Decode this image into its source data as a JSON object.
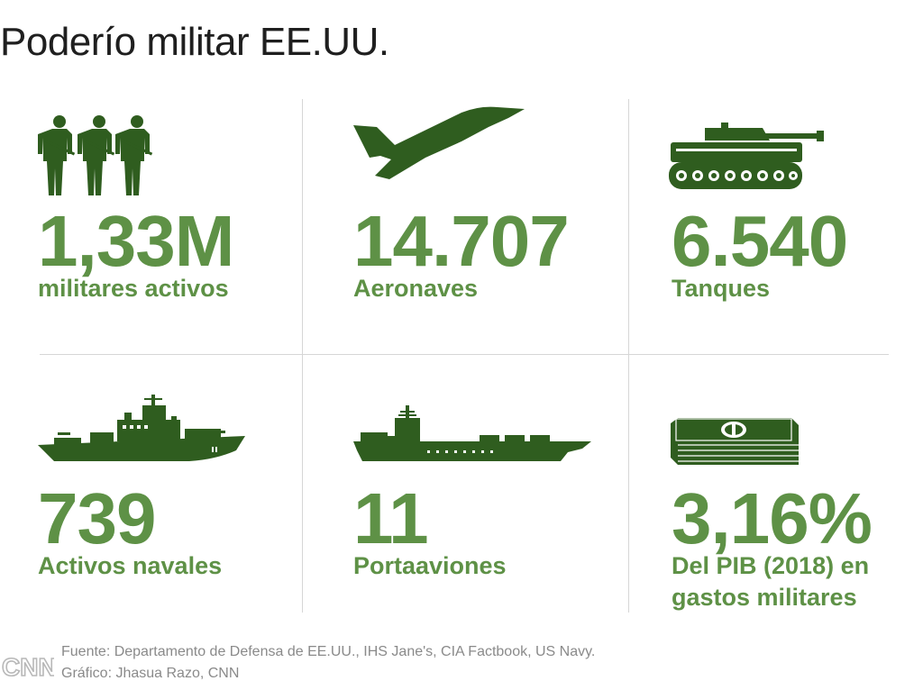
{
  "title": "Poderío militar EE.UU.",
  "colors": {
    "number": "#5e9146",
    "icon": "#2f5d1f",
    "divider": "#d6d6d6",
    "footer": "#8a8a8a"
  },
  "stats": [
    {
      "icon": "soldiers-icon",
      "value": "1,33M",
      "label_lines": [
        "militares activos"
      ]
    },
    {
      "icon": "fighter-jet-icon",
      "value": "14.707",
      "label_lines": [
        "Aeronaves"
      ]
    },
    {
      "icon": "tank-icon",
      "value": "6.540",
      "label_lines": [
        "Tanques"
      ]
    },
    {
      "icon": "warship-icon",
      "value": "739",
      "label_lines": [
        "Activos navales"
      ]
    },
    {
      "icon": "aircraft-carrier-icon",
      "value": "11",
      "label_lines": [
        "Portaaviones"
      ]
    },
    {
      "icon": "money-stack-icon",
      "value": "3,16%",
      "label_lines": [
        "Del PIB (2018) en",
        "gastos militares"
      ]
    }
  ],
  "footer": {
    "source": "Fuente: Departamento de Defensa de EE.UU., IHS Jane's, CIA Factbook, US Navy.",
    "credit": "Gráfico: Jhasua Razo, CNN",
    "logo": "CNN"
  }
}
